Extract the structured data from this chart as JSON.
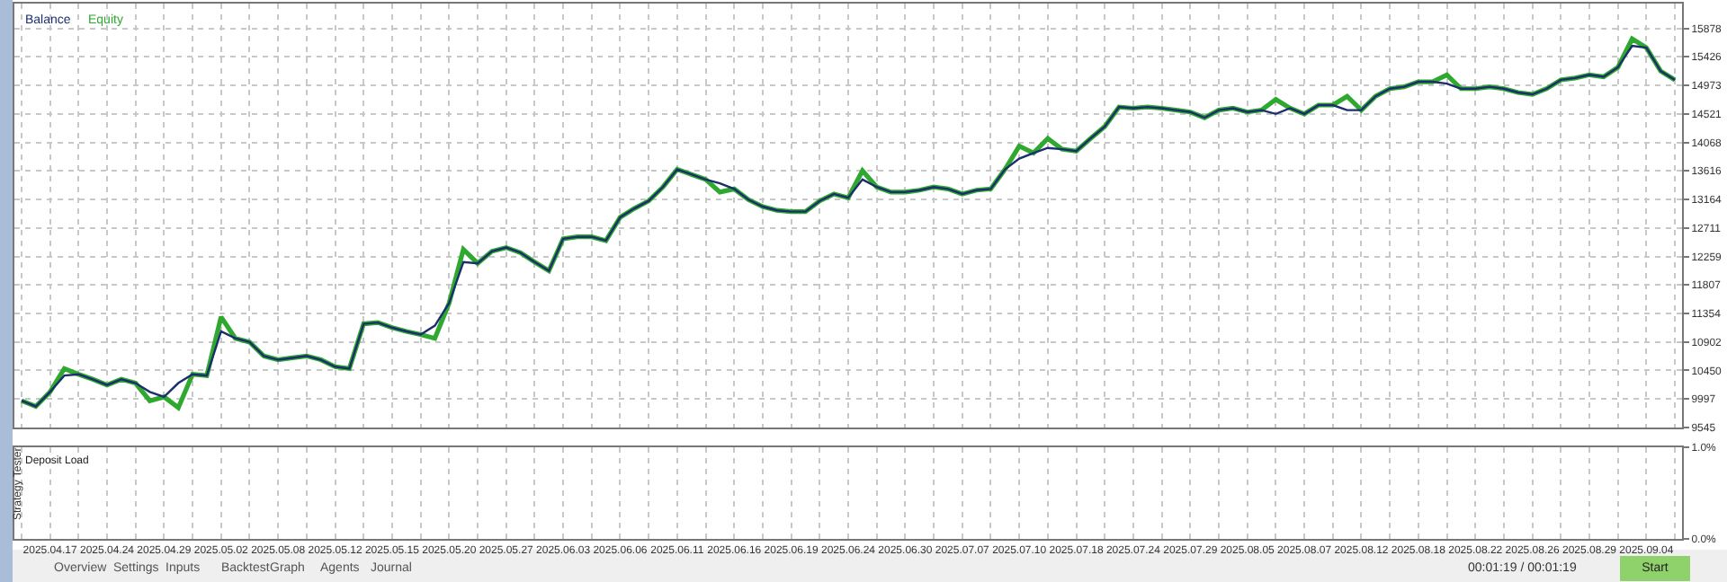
{
  "chart_data": [
    {
      "type": "line",
      "categories": [
        null,
        null,
        "2025.04.17",
        null,
        null,
        null,
        "2025.04.24",
        null,
        null,
        null,
        "2025.04.29",
        null,
        null,
        null,
        "2025.05.02",
        null,
        null,
        null,
        "2025.05.08",
        null,
        null,
        null,
        "2025.05.12",
        null,
        null,
        null,
        "2025.05.15",
        null,
        null,
        null,
        "2025.05.20",
        null,
        null,
        null,
        "2025.05.27",
        null,
        null,
        null,
        "2025.06.03",
        null,
        null,
        null,
        "2025.06.06",
        null,
        null,
        null,
        "2025.06.11",
        null,
        null,
        null,
        "2025.06.16",
        null,
        null,
        null,
        "2025.06.19",
        null,
        null,
        null,
        "2025.06.24",
        null,
        null,
        null,
        "2025.06.30",
        null,
        null,
        null,
        "2025.07.07",
        null,
        null,
        null,
        "2025.07.10",
        null,
        null,
        null,
        "2025.07.18",
        null,
        null,
        null,
        "2025.07.24",
        null,
        null,
        null,
        "2025.07.29",
        null,
        null,
        null,
        "2025.08.05",
        null,
        null,
        null,
        "2025.08.07",
        null,
        null,
        null,
        "2025.08.12",
        null,
        null,
        null,
        "2025.08.18",
        null,
        null,
        null,
        "2025.08.22",
        null,
        null,
        null,
        "2025.08.26",
        null,
        null,
        null,
        "2025.08.29",
        null,
        null,
        null,
        "2025.09.04",
        null,
        null
      ],
      "series": [
        {
          "name": "Equity",
          "color": "#2fa82f",
          "values": [
            9970,
            9880,
            10110,
            10480,
            10390,
            10310,
            10220,
            10310,
            10250,
            9970,
            10030,
            9860,
            10390,
            10370,
            11300,
            10960,
            10900,
            10680,
            10620,
            10650,
            10680,
            10620,
            10510,
            10480,
            11190,
            11210,
            11130,
            11070,
            11020,
            10960,
            11520,
            12370,
            12150,
            12340,
            12400,
            12320,
            12170,
            12030,
            12540,
            12570,
            12570,
            12510,
            12880,
            13020,
            13140,
            13360,
            13640,
            13560,
            13480,
            13280,
            13330,
            13160,
            13050,
            12990,
            12970,
            12970,
            13140,
            13250,
            13190,
            13620,
            13360,
            13280,
            13280,
            13310,
            13360,
            13330,
            13250,
            13310,
            13330,
            13640,
            14010,
            13900,
            14130,
            13960,
            13930,
            14130,
            14320,
            14630,
            14610,
            14630,
            14610,
            14580,
            14550,
            14460,
            14580,
            14610,
            14550,
            14580,
            14750,
            14610,
            14520,
            14660,
            14660,
            14800,
            14580,
            14800,
            14920,
            14950,
            15030,
            15030,
            15140,
            14920,
            14920,
            14950,
            14920,
            14860,
            14830,
            14920,
            15060,
            15090,
            15140,
            15110,
            15260,
            15710,
            15570,
            15200,
            15060
          ]
        },
        {
          "name": "Balance",
          "color": "#1b2f6e",
          "values": [
            9970,
            9880,
            10110,
            10370,
            10390,
            10310,
            10220,
            10310,
            10250,
            10110,
            10030,
            10250,
            10390,
            10370,
            11070,
            10960,
            10900,
            10680,
            10620,
            10650,
            10680,
            10620,
            10510,
            10480,
            11190,
            11210,
            11130,
            11070,
            11020,
            11160,
            11520,
            12170,
            12150,
            12340,
            12400,
            12320,
            12170,
            12030,
            12540,
            12570,
            12570,
            12510,
            12880,
            13020,
            13140,
            13360,
            13640,
            13560,
            13480,
            13420,
            13330,
            13160,
            13050,
            12990,
            12970,
            12970,
            13140,
            13250,
            13190,
            13480,
            13360,
            13280,
            13280,
            13310,
            13360,
            13330,
            13250,
            13310,
            13330,
            13640,
            13810,
            13900,
            13980,
            13960,
            13930,
            14130,
            14320,
            14630,
            14610,
            14630,
            14610,
            14580,
            14550,
            14460,
            14580,
            14610,
            14550,
            14580,
            14520,
            14610,
            14520,
            14660,
            14660,
            14580,
            14580,
            14800,
            14920,
            14950,
            15030,
            15030,
            15000,
            14920,
            14920,
            14950,
            14920,
            14860,
            14830,
            14920,
            15060,
            15090,
            15140,
            15110,
            15260,
            15600,
            15570,
            15200,
            15060
          ]
        }
      ],
      "ylim": [
        9545,
        16270
      ],
      "yticks": [
        9545,
        9997,
        10450,
        10902,
        11354,
        11807,
        12259,
        12711,
        13164,
        13616,
        14068,
        14521,
        14973,
        15426,
        15878
      ],
      "grid": true,
      "legend": "top left",
      "tick_labels": "y"
    },
    {
      "type": "bar",
      "title": "Deposit Load",
      "categories": [
        null,
        null,
        "2025.04.17",
        null,
        null,
        null,
        "2025.04.24",
        null,
        null,
        null,
        "2025.04.29",
        null,
        null,
        null,
        "2025.05.02",
        null,
        null,
        null,
        "2025.05.08",
        null,
        null,
        null,
        "2025.05.12",
        null,
        null,
        null,
        "2025.05.15",
        null,
        null,
        null,
        "2025.05.20",
        null,
        null,
        null,
        "2025.05.27",
        null,
        null,
        null,
        "2025.06.03",
        null,
        null,
        null,
        "2025.06.06",
        null,
        null,
        null,
        "2025.06.11",
        null,
        null,
        null,
        "2025.06.16",
        null,
        null,
        null,
        "2025.06.19",
        null,
        null,
        null,
        "2025.06.24",
        null,
        null,
        null,
        "2025.06.30",
        null,
        null,
        null,
        "2025.07.07",
        null,
        null,
        null,
        "2025.07.10",
        null,
        null,
        null,
        "2025.07.18",
        null,
        null,
        null,
        "2025.07.24",
        null,
        null,
        null,
        "2025.07.29",
        null,
        null,
        null,
        "2025.08.05",
        null,
        null,
        null,
        "2025.08.07",
        null,
        null,
        null,
        "2025.08.12",
        null,
        null,
        null,
        "2025.08.18",
        null,
        null,
        null,
        "2025.08.22",
        null,
        null,
        null,
        "2025.08.26",
        null,
        null,
        null,
        "2025.08.29",
        null,
        null,
        null,
        "2025.09.04",
        null,
        null
      ],
      "values": [
        0,
        0,
        0,
        0,
        0,
        0,
        0,
        0,
        0,
        0,
        0,
        0,
        0,
        0,
        0,
        0,
        0,
        0,
        0,
        0,
        0,
        0,
        0,
        0,
        0,
        0,
        0,
        0,
        0,
        0,
        0,
        0,
        0,
        0,
        0,
        0,
        0,
        0,
        0,
        0,
        0,
        0,
        0,
        0,
        0,
        0,
        0,
        0,
        0,
        0,
        0,
        0,
        0,
        0,
        0,
        0,
        0,
        0,
        0,
        0,
        0,
        0,
        0,
        0,
        0,
        0,
        0,
        0,
        0,
        0,
        0,
        0,
        0,
        0,
        0,
        0,
        0,
        0,
        0,
        0,
        0,
        0,
        0,
        0,
        0,
        0,
        0,
        0,
        0,
        0,
        0,
        0,
        0,
        0,
        0,
        0,
        0,
        0,
        0,
        0,
        0,
        0,
        0,
        0,
        0,
        0,
        0,
        0,
        0,
        0,
        0,
        0,
        0,
        0,
        0,
        0,
        0
      ],
      "ylim": [
        0,
        1
      ],
      "yticks": [
        {
          "value": 0,
          "label": "0.0%"
        },
        {
          "value": 1,
          "label": "1.0%"
        }
      ],
      "grid": "x",
      "annotations": [
        "Overview",
        "Settings",
        "Inputs",
        "Backtest",
        "Graph",
        "Agents",
        "Journal",
        "Strategy Tester",
        "00:01:19 / 00:01:19",
        "Start"
      ]
    }
  ]
}
